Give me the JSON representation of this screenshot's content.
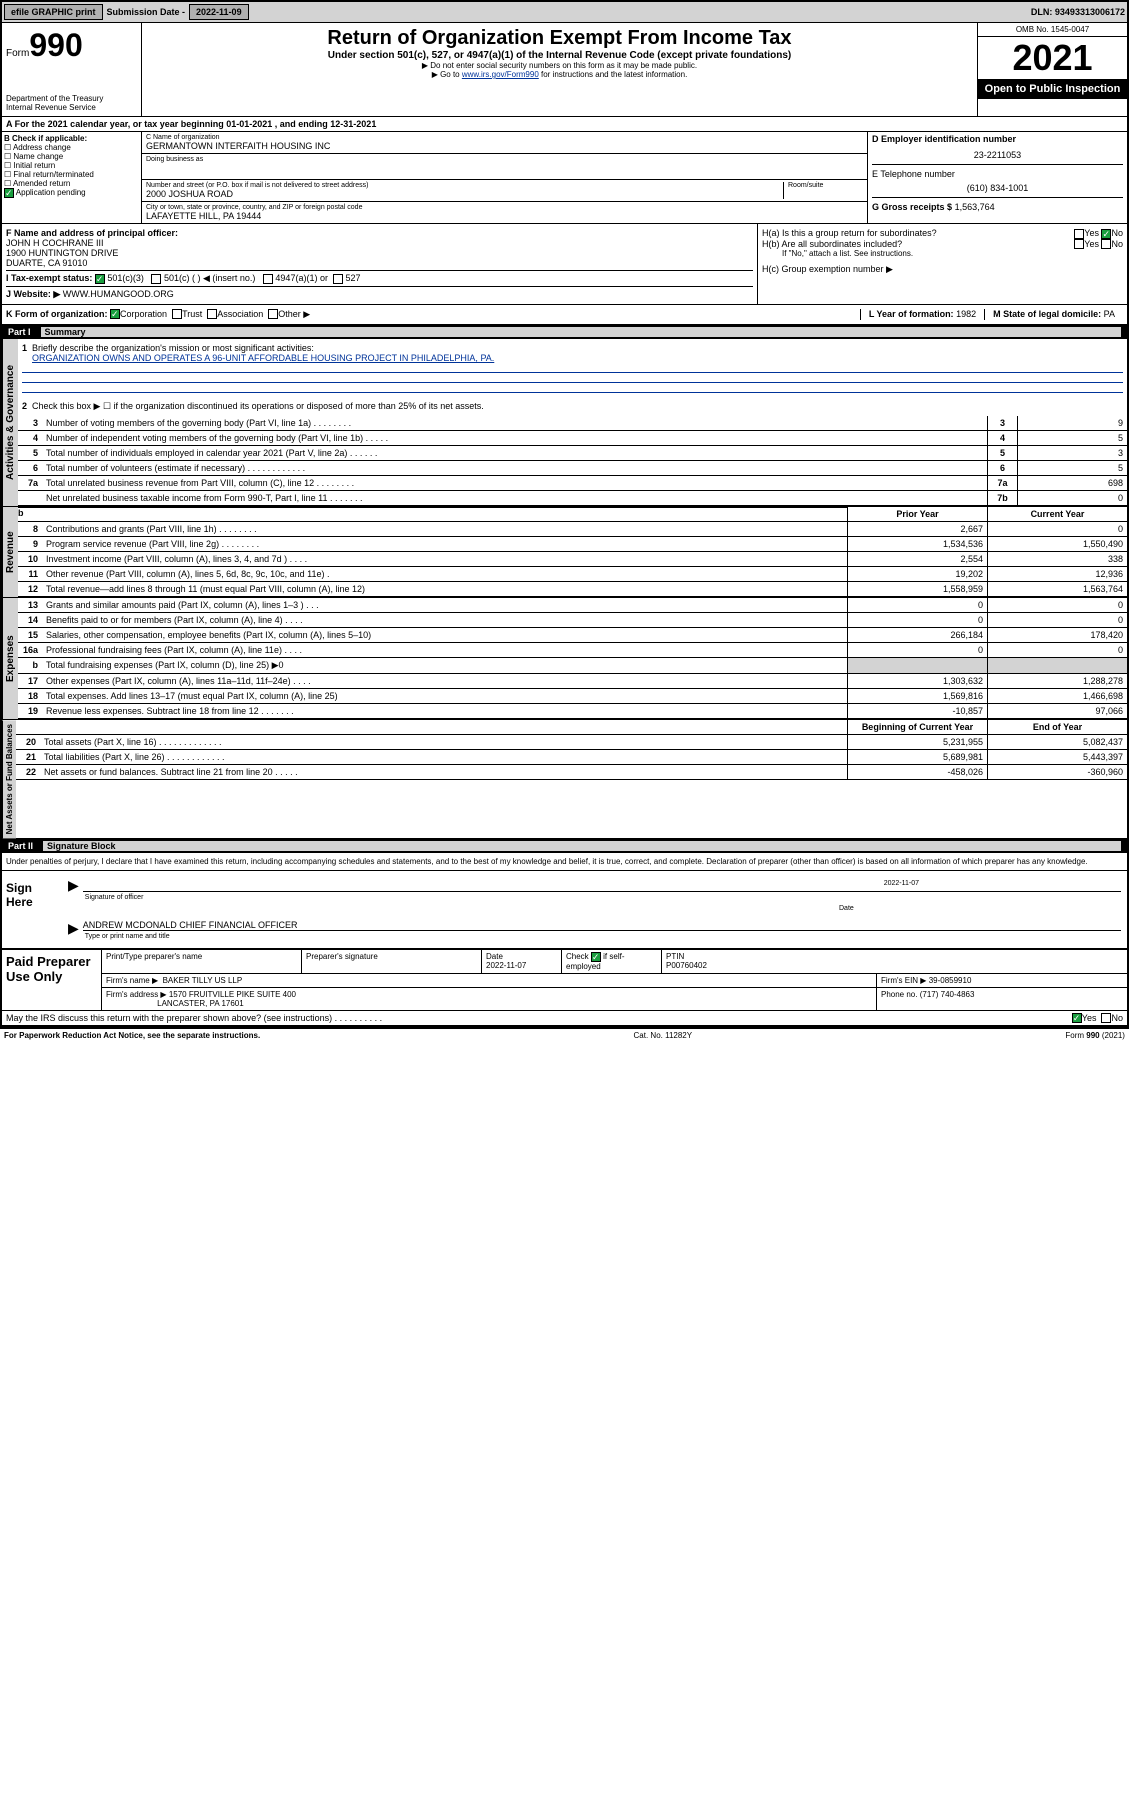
{
  "topbar": {
    "efile": "efile GRAPHIC print",
    "sub_label": "Submission Date -",
    "sub_date": "2022-11-09",
    "dln": "DLN: 93493313006172"
  },
  "header": {
    "form": "Form",
    "form_num": "990",
    "dept": "Department of the Treasury",
    "irs": "Internal Revenue Service",
    "title": "Return of Organization Exempt From Income Tax",
    "subtitle": "Under section 501(c), 527, or 4947(a)(1) of the Internal Revenue Code (except private foundations)",
    "note1": "▶ Do not enter social security numbers on this form as it may be made public.",
    "note2_pre": "▶ Go to ",
    "note2_link": "www.irs.gov/Form990",
    "note2_post": " for instructions and the latest information.",
    "omb": "OMB No. 1545-0047",
    "year": "2021",
    "open": "Open to Public Inspection"
  },
  "row_a": "A For the 2021 calendar year, or tax year beginning 01-01-2021    , and ending 12-31-2021",
  "section_b": {
    "b_label": "B Check if applicable:",
    "chk1": "☐ Address change",
    "chk2": "☐ Name change",
    "chk3": "☐ Initial return",
    "chk4": "☐ Final return/terminated",
    "chk5": "☐ Amended return",
    "chk6": "Application pending",
    "c_label": "C Name of organization",
    "c_name": "GERMANTOWN INTERFAITH HOUSING INC",
    "dba": "Doing business as",
    "addr_label": "Number and street (or P.O. box if mail is not delivered to street address)",
    "addr": "2000 JOSHUA ROAD",
    "room": "Room/suite",
    "city_label": "City or town, state or province, country, and ZIP or foreign postal code",
    "city": "LAFAYETTE HILL, PA  19444",
    "d_label": "D Employer identification number",
    "d_ein": "23-2211053",
    "e_label": "E Telephone number",
    "e_phone": "(610) 834-1001",
    "g_label": "G Gross receipts $",
    "g_val": "1,563,764"
  },
  "section_f": {
    "f_label": "F Name and address of principal officer:",
    "f_name": "JOHN H COCHRANE III",
    "f_addr1": "1900 HUNTINGTON DRIVE",
    "f_addr2": "DUARTE, CA  91010",
    "i_label": "I  Tax-exempt status:",
    "i_501c3": "501(c)(3)",
    "i_501c": "501(c) (  ) ◀ (insert no.)",
    "i_4947": "4947(a)(1) or",
    "i_527": "527",
    "j_label": "J  Website: ▶",
    "j_site": "WWW.HUMANGOOD.ORG",
    "ha_label": "H(a)  Is this a group return for subordinates?",
    "ha_yes": "Yes",
    "ha_no": "No",
    "hb_label": "H(b)  Are all subordinates included?",
    "hb_note": "If \"No,\" attach a list. See instructions.",
    "hc_label": "H(c)  Group exemption number ▶"
  },
  "row_k": {
    "k_label": "K Form of organization:",
    "k_corp": "Corporation",
    "k_trust": "Trust",
    "k_assoc": "Association",
    "k_other": "Other ▶",
    "l_label": "L Year of formation:",
    "l_val": "1982",
    "m_label": "M State of legal domicile:",
    "m_val": "PA"
  },
  "part1": {
    "header_num": "Part I",
    "header_title": "Summary",
    "line1": "Briefly describe the organization's mission or most significant activities:",
    "mission": "ORGANIZATION OWNS AND OPERATES A 96-UNIT AFFORDABLE HOUSING PROJECT IN PHILADELPHIA, PA.",
    "line2": "Check this box ▶ ☐  if the organization discontinued its operations or disposed of more than 25% of its net assets.",
    "governance_label": "Activities & Governance",
    "revenue_label": "Revenue",
    "expenses_label": "Expenses",
    "netassets_label": "Net Assets or Fund Balances",
    "lines_gov": [
      {
        "n": "3",
        "d": "Number of voting members of the governing body (Part VI, line 1a)  .     .     .     .     .     .     .     .",
        "b": "3",
        "v": "9"
      },
      {
        "n": "4",
        "d": "Number of independent voting members of the governing body (Part VI, line 1b)  .     .     .     .     .",
        "b": "4",
        "v": "5"
      },
      {
        "n": "5",
        "d": "Total number of individuals employed in calendar year 2021 (Part V, line 2a)  .     .     .     .     .     .",
        "b": "5",
        "v": "3"
      },
      {
        "n": "6",
        "d": "Total number of volunteers (estimate if necessary)  .     .     .     .     .     .     .     .     .     .     .     .",
        "b": "6",
        "v": "5"
      },
      {
        "n": "7a",
        "d": "Total unrelated business revenue from Part VIII, column (C), line 12  .     .     .     .     .     .     .     .",
        "b": "7a",
        "v": "698"
      },
      {
        "n": "",
        "d": "Net unrelated business taxable income from Form 990-T, Part I, line 11  .     .     .     .     .     .     .",
        "b": "7b",
        "v": "0"
      }
    ],
    "prior_year": "Prior Year",
    "current_year": "Current Year",
    "lines_rev": [
      {
        "n": "8",
        "d": "Contributions and grants (Part VIII, line 1h)  .     .     .     .     .     .     .     .",
        "p": "2,667",
        "c": "0"
      },
      {
        "n": "9",
        "d": "Program service revenue (Part VIII, line 2g)  .     .     .     .     .     .     .     .",
        "p": "1,534,536",
        "c": "1,550,490"
      },
      {
        "n": "10",
        "d": "Investment income (Part VIII, column (A), lines 3, 4, and 7d )  .     .     .     .",
        "p": "2,554",
        "c": "338"
      },
      {
        "n": "11",
        "d": "Other revenue (Part VIII, column (A), lines 5, 6d, 8c, 9c, 10c, and 11e)  .",
        "p": "19,202",
        "c": "12,936"
      },
      {
        "n": "12",
        "d": "Total revenue—add lines 8 through 11 (must equal Part VIII, column (A), line 12)",
        "p": "1,558,959",
        "c": "1,563,764"
      }
    ],
    "lines_exp": [
      {
        "n": "13",
        "d": "Grants and similar amounts paid (Part IX, column (A), lines 1–3 )  .     .     .",
        "p": "0",
        "c": "0"
      },
      {
        "n": "14",
        "d": "Benefits paid to or for members (Part IX, column (A), line 4)  .     .     .     .",
        "p": "0",
        "c": "0"
      },
      {
        "n": "15",
        "d": "Salaries, other compensation, employee benefits (Part IX, column (A), lines 5–10)",
        "p": "266,184",
        "c": "178,420"
      },
      {
        "n": "16a",
        "d": "Professional fundraising fees (Part IX, column (A), line 11e)  .     .     .     .",
        "p": "0",
        "c": "0"
      },
      {
        "n": "b",
        "d": "Total fundraising expenses (Part IX, column (D), line 25) ▶0",
        "p": "",
        "c": "",
        "grey": true
      },
      {
        "n": "17",
        "d": "Other expenses (Part IX, column (A), lines 11a–11d, 11f–24e)  .     .     .     .",
        "p": "1,303,632",
        "c": "1,288,278"
      },
      {
        "n": "18",
        "d": "Total expenses. Add lines 13–17 (must equal Part IX, column (A), line 25)",
        "p": "1,569,816",
        "c": "1,466,698"
      },
      {
        "n": "19",
        "d": "Revenue less expenses. Subtract line 18 from line 12  .     .     .     .     .     .     .",
        "p": "-10,857",
        "c": "97,066"
      }
    ],
    "begin_year": "Beginning of Current Year",
    "end_year": "End of Year",
    "lines_net": [
      {
        "n": "20",
        "d": "Total assets (Part X, line 16)  .     .     .     .     .     .     .     .     .     .     .     .     .",
        "p": "5,231,955",
        "c": "5,082,437"
      },
      {
        "n": "21",
        "d": "Total liabilities (Part X, line 26)  .     .     .     .     .     .     .     .     .     .     .     .",
        "p": "5,689,981",
        "c": "5,443,397"
      },
      {
        "n": "22",
        "d": "Net assets or fund balances. Subtract line 21 from line 20  .     .     .     .     .",
        "p": "-458,026",
        "c": "-360,960"
      }
    ]
  },
  "part2": {
    "header_num": "Part II",
    "header_title": "Signature Block",
    "penalty": "Under penalties of perjury, I declare that I have examined this return, including accompanying schedules and statements, and to the best of my knowledge and belief, it is true, correct, and complete. Declaration of preparer (other than officer) is based on all information of which preparer has any knowledge.",
    "sign_here": "Sign Here",
    "sig_officer": "Signature of officer",
    "sig_date": "2022-11-07",
    "sig_date_lbl": "Date",
    "sig_name": "ANDREW MCDONALD  CHIEF FINANCIAL OFFICER",
    "sig_name_lbl": "Type or print name and title",
    "paid_label": "Paid Preparer Use Only",
    "prep_name_lbl": "Print/Type preparer's name",
    "prep_sig_lbl": "Preparer's signature",
    "prep_date_lbl": "Date",
    "prep_date": "2022-11-07",
    "prep_check": "Check",
    "prep_self": "if self-employed",
    "ptin_lbl": "PTIN",
    "ptin": "P00760402",
    "firm_name_lbl": "Firm's name    ▶",
    "firm_name": "BAKER TILLY US LLP",
    "firm_ein_lbl": "Firm's EIN ▶",
    "firm_ein": "39-0859910",
    "firm_addr_lbl": "Firm's address ▶",
    "firm_addr1": "1570 FRUITVILLE PIKE SUITE 400",
    "firm_addr2": "LANCASTER, PA  17601",
    "phone_lbl": "Phone no.",
    "phone": "(717) 740-4863",
    "discuss": "May the IRS discuss this return with the preparer shown above? (see instructions)  .     .     .     .     .     .     .     .     .     .",
    "yes": "Yes",
    "no": "No"
  },
  "footer": {
    "left": "For Paperwork Reduction Act Notice, see the separate instructions.",
    "mid": "Cat. No. 11282Y",
    "right": "Form 990 (2021)"
  }
}
